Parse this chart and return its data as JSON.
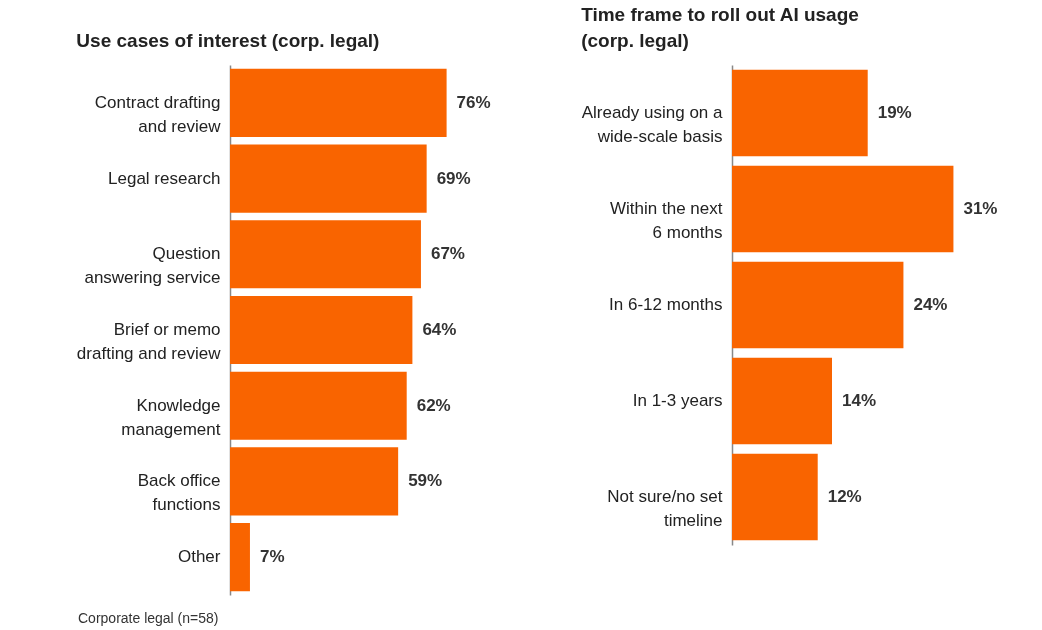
{
  "chart_data": [
    {
      "type": "bar",
      "orientation": "horizontal",
      "title": "Use cases of interest (corp. legal)",
      "categories": [
        "Contract drafting\nand review",
        "Legal research",
        "Question\nanswering service",
        "Brief or memo\ndrafting and review",
        "Knowledge\nmanagement",
        "Back office\nfunctions",
        "Other"
      ],
      "values": [
        76,
        69,
        67,
        64,
        62,
        59,
        7
      ],
      "color": "#f96400",
      "data_labels": true,
      "value_labels": [
        "76%",
        "69%",
        "67%",
        "64%",
        "62%",
        "59%",
        "7%"
      ],
      "annotations": [
        "Corporate legal (n=58)"
      ]
    },
    {
      "type": "bar",
      "orientation": "horizontal",
      "title": "Time frame to roll out AI usage\n(corp. legal)",
      "categories": [
        "Already using on a\nwide-scale basis",
        "Within the next\n6 months",
        "In 6-12 months",
        "In 1-3 years",
        "Not sure/no set\ntimeline"
      ],
      "values": [
        19,
        31,
        24,
        14,
        12
      ],
      "color": "#f96400",
      "data_labels": true,
      "value_labels": [
        "19%",
        "31%",
        "24%",
        "14%",
        "12%"
      ]
    }
  ]
}
